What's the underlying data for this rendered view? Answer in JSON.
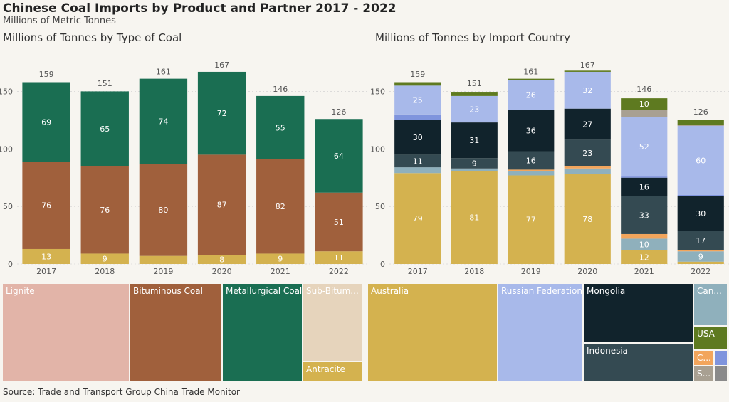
{
  "header": {
    "title": "Chinese Coal Imports by Product and Partner 2017 - 2022",
    "subtitle": "Millions of Metric Tonnes",
    "left_panel_title": "Millions of Tonnes by Type of Coal",
    "right_panel_title": "Millions of Tonnes by Import Country",
    "source": "Source: Trade and Transport Group China Trade Monitor"
  },
  "colors": {
    "lignite": "#e2b4a8",
    "bituminous": "#a0603c",
    "metallurgical": "#1a6e52",
    "sub_bituminous": "#e6d4bc",
    "anthracite": "#d4b24f",
    "australia": "#d4b24f",
    "russia": "#a8b9ea",
    "mongolia": "#11232c",
    "indonesia": "#344a52",
    "canada": "#8fb0bc",
    "usa": "#5e7a20",
    "colombia": "#f2a55c",
    "philippines": "#7f94dd",
    "south_africa": "#a8a092",
    "other": "#8a8a8a",
    "tick_text": "#555555",
    "grid": "#cccccc"
  },
  "chart_data": [
    {
      "type": "bar",
      "stacked": true,
      "title": "Millions of Tonnes by Type of Coal",
      "categories": [
        "2017",
        "2018",
        "2019",
        "2020",
        "2021",
        "2022"
      ],
      "ylim": [
        0,
        175
      ],
      "yticks": [
        0,
        50,
        100,
        150
      ],
      "grid": true,
      "totals": [
        159,
        151,
        161,
        167,
        146,
        126
      ],
      "series": [
        {
          "name": "Anthracite",
          "color_key": "anthracite",
          "values": [
            13,
            9,
            7,
            8,
            9,
            11
          ],
          "labels": [
            "13",
            "9",
            "",
            "8",
            "9",
            "11"
          ]
        },
        {
          "name": "Bituminous Coal",
          "color_key": "bituminous",
          "values": [
            76,
            76,
            80,
            87,
            82,
            51
          ],
          "labels": [
            "76",
            "76",
            "80",
            "87",
            "82",
            "51"
          ]
        },
        {
          "name": "Metallurgical Coal",
          "color_key": "metallurgical",
          "values": [
            69,
            65,
            74,
            72,
            55,
            64
          ],
          "labels": [
            "69",
            "65",
            "74",
            "72",
            "55",
            "64"
          ]
        }
      ]
    },
    {
      "type": "bar",
      "stacked": true,
      "title": "Millions of Tonnes by Import Country",
      "categories": [
        "2017",
        "2018",
        "2019",
        "2020",
        "2021",
        "2022"
      ],
      "ylim": [
        0,
        175
      ],
      "yticks": [
        0,
        50,
        100,
        150
      ],
      "grid": true,
      "totals": [
        159,
        151,
        161,
        167,
        146,
        126
      ],
      "series": [
        {
          "name": "Australia",
          "color_key": "australia",
          "values": [
            79,
            81,
            77,
            78,
            12,
            2
          ],
          "labels": [
            "79",
            "81",
            "77",
            "78",
            "12",
            ""
          ]
        },
        {
          "name": "Canada",
          "color_key": "canada",
          "values": [
            5,
            2,
            4,
            5,
            10,
            9
          ],
          "labels": [
            "",
            "",
            "",
            "",
            "10",
            "9"
          ]
        },
        {
          "name": "Colombia",
          "color_key": "colombia",
          "values": [
            0,
            0,
            1,
            2,
            4,
            1
          ],
          "labels": [
            "",
            "",
            "",
            "",
            "",
            ""
          ]
        },
        {
          "name": "Indonesia",
          "color_key": "indonesia",
          "values": [
            11,
            9,
            16,
            23,
            33,
            17
          ],
          "labels": [
            "11",
            "9",
            "16",
            "23",
            "33",
            "17"
          ]
        },
        {
          "name": "Mongolia",
          "color_key": "mongolia",
          "values": [
            30,
            31,
            36,
            27,
            16,
            30
          ],
          "labels": [
            "30",
            "31",
            "36",
            "27",
            "16",
            "30"
          ]
        },
        {
          "name": "Philippines",
          "color_key": "philippines",
          "values": [
            5,
            0,
            0,
            0,
            1,
            1
          ],
          "labels": [
            "",
            "",
            "",
            "",
            "",
            ""
          ]
        },
        {
          "name": "Russian Federation",
          "color_key": "russia",
          "values": [
            25,
            23,
            26,
            32,
            52,
            60
          ],
          "labels": [
            "25",
            "23",
            "26",
            "32",
            "52",
            "60"
          ]
        },
        {
          "name": "South Africa",
          "color_key": "south_africa",
          "values": [
            0,
            0,
            0,
            0,
            6,
            1
          ],
          "labels": [
            "",
            "",
            "",
            "",
            "",
            ""
          ]
        },
        {
          "name": "USA",
          "color_key": "usa",
          "values": [
            3,
            3,
            1,
            1,
            10,
            4
          ],
          "labels": [
            "",
            "",
            "",
            "",
            "10",
            ""
          ]
        }
      ]
    },
    {
      "type": "treemap",
      "items": [
        {
          "name": "Lignite",
          "color_key": "lignite"
        },
        {
          "name": "Bituminous Coal",
          "color_key": "bituminous"
        },
        {
          "name": "Metallurgical Coal",
          "color_key": "metallurgical"
        },
        {
          "name": "Sub-Bitum...",
          "color_key": "sub_bituminous"
        },
        {
          "name": "Antracite",
          "color_key": "anthracite"
        }
      ]
    },
    {
      "type": "treemap",
      "items": [
        {
          "name": "Australia",
          "color_key": "australia"
        },
        {
          "name": "Russian Federation",
          "color_key": "russia"
        },
        {
          "name": "Mongolia",
          "color_key": "mongolia"
        },
        {
          "name": "Indonesia",
          "color_key": "indonesia"
        },
        {
          "name": "Can...",
          "color_key": "canada"
        },
        {
          "name": "USA",
          "color_key": "usa"
        },
        {
          "name": "C...",
          "color_key": "colombia"
        },
        {
          "name": "",
          "color_key": "philippines"
        },
        {
          "name": "S...",
          "color_key": "south_africa"
        },
        {
          "name": "",
          "color_key": "other"
        }
      ]
    }
  ]
}
